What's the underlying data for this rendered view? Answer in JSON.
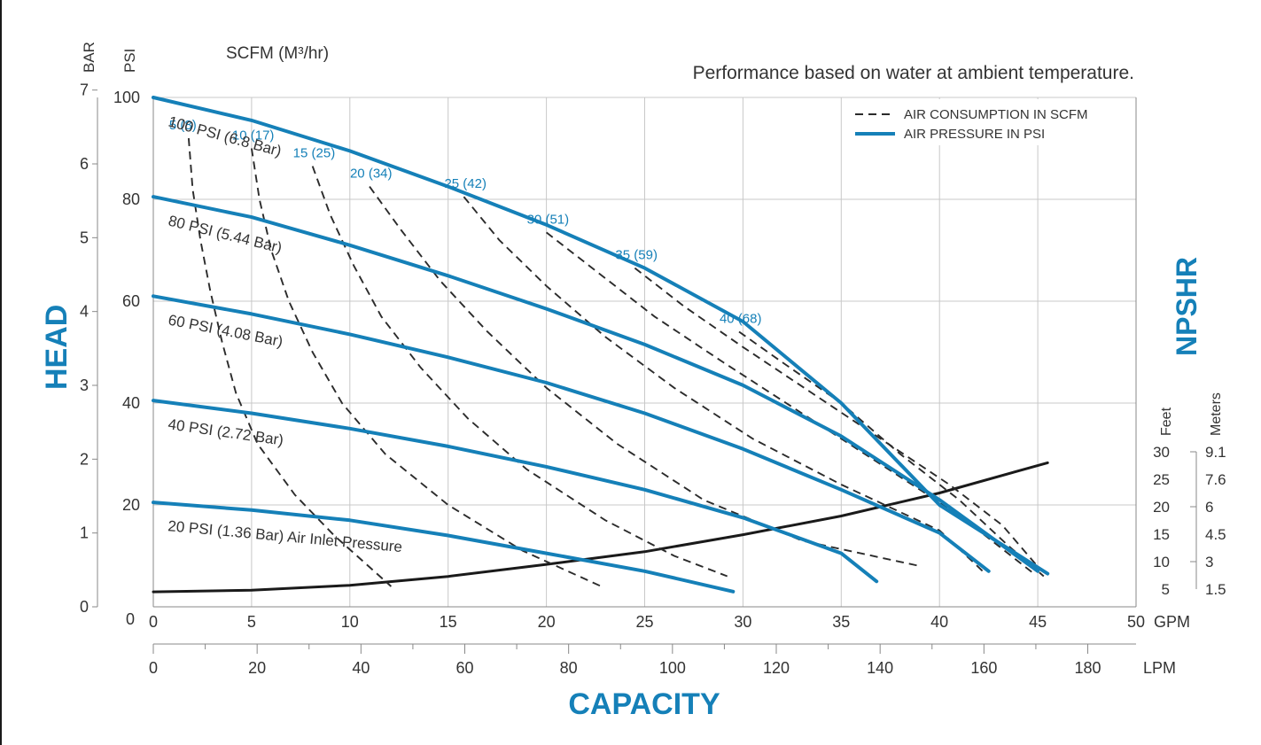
{
  "chart_data": {
    "type": "line",
    "title": "",
    "note": "Performance based on water at ambient temperature.",
    "xlabel": "CAPACITY",
    "ylabel": "HEAD",
    "right_label": "NPSHR",
    "grid": true,
    "legend_position": "top-right",
    "legend": [
      {
        "style": "dashed",
        "label": "AIR CONSUMPTION IN SCFM"
      },
      {
        "style": "solid",
        "label": "AIR PRESSURE IN PSI",
        "color": "#1580b8"
      }
    ],
    "x_axis_gpm": {
      "unit": "GPM",
      "range": [
        0,
        50
      ],
      "ticks": [
        "0",
        "5",
        "10",
        "15",
        "20",
        "25",
        "30",
        "35",
        "40",
        "45",
        "50"
      ]
    },
    "x_axis_lpm": {
      "unit": "LPM",
      "range": [
        0,
        189.3
      ],
      "ticks": [
        "0",
        "20",
        "40",
        "60",
        "80",
        "100",
        "120",
        "140",
        "160",
        "180"
      ]
    },
    "y_axis_psi": {
      "unit": "PSI",
      "range": [
        0,
        100
      ],
      "ticks": [
        "0",
        "20",
        "40",
        "60",
        "80",
        "100"
      ]
    },
    "y_axis_bar": {
      "unit": "BAR",
      "range": [
        0,
        6.9
      ],
      "ticks": [
        "0",
        "1",
        "2",
        "3",
        "4",
        "5",
        "6",
        "7"
      ]
    },
    "air_axis_label": "SCFM (M³/hr)",
    "npshr_axis": {
      "feet_label": "Feet",
      "meters_label": "Meters",
      "feet_ticks": [
        "30",
        "25",
        "20",
        "15",
        "10",
        "5"
      ],
      "meters_ticks": [
        "9.1",
        "7.6",
        "6",
        "4.5",
        "3",
        "1.5"
      ]
    },
    "pressure_series": [
      {
        "label": "100 PSI (6.8 Bar)",
        "points": [
          [
            0,
            100
          ],
          [
            5,
            95.5
          ],
          [
            10,
            89.5
          ],
          [
            15,
            82.5
          ],
          [
            20,
            75
          ],
          [
            25,
            66.5
          ],
          [
            30,
            56
          ],
          [
            35,
            40
          ],
          [
            40,
            20
          ],
          [
            45.5,
            6.5
          ]
        ]
      },
      {
        "label": "80 PSI (5.44 Bar)",
        "points": [
          [
            0,
            80.5
          ],
          [
            5,
            76.5
          ],
          [
            10,
            71
          ],
          [
            15,
            65
          ],
          [
            20,
            58.5
          ],
          [
            25,
            51.5
          ],
          [
            30,
            43.5
          ],
          [
            35,
            33.5
          ],
          [
            40,
            21
          ],
          [
            45,
            7
          ]
        ]
      },
      {
        "label": "60 PSI (4.08 Bar)",
        "points": [
          [
            0,
            61
          ],
          [
            5,
            57.5
          ],
          [
            10,
            53.5
          ],
          [
            15,
            49
          ],
          [
            20,
            44
          ],
          [
            25,
            38
          ],
          [
            30,
            31
          ],
          [
            35,
            23
          ],
          [
            40,
            14.5
          ],
          [
            42.5,
            7
          ]
        ]
      },
      {
        "label": "40 PSI (2.72 Bar)",
        "points": [
          [
            0,
            40.5
          ],
          [
            5,
            38
          ],
          [
            10,
            35
          ],
          [
            15,
            31.5
          ],
          [
            20,
            27.5
          ],
          [
            25,
            23
          ],
          [
            30,
            17.5
          ],
          [
            35,
            10.5
          ],
          [
            36.8,
            5
          ]
        ]
      },
      {
        "label": "20 PSI (1.36 Bar) Air Inlet Pressure",
        "points": [
          [
            0,
            20.5
          ],
          [
            5,
            19
          ],
          [
            10,
            17
          ],
          [
            15,
            14
          ],
          [
            20,
            10.5
          ],
          [
            25,
            7
          ],
          [
            29.5,
            3
          ]
        ]
      }
    ],
    "air_series": [
      {
        "label": "5 (8)",
        "points": [
          [
            1.8,
            92
          ],
          [
            2.0,
            82
          ],
          [
            2.4,
            72
          ],
          [
            2.9,
            62
          ],
          [
            3.5,
            52
          ],
          [
            4.2,
            42
          ],
          [
            5.3,
            32
          ],
          [
            7.2,
            22
          ],
          [
            9.2,
            14
          ],
          [
            12.1,
            4
          ]
        ]
      },
      {
        "label": "10 (17)",
        "points": [
          [
            5.0,
            90
          ],
          [
            5.4,
            80
          ],
          [
            6.0,
            70
          ],
          [
            6.9,
            60
          ],
          [
            8.1,
            50
          ],
          [
            9.6,
            40
          ],
          [
            11.8,
            30
          ],
          [
            15.0,
            20
          ],
          [
            18.8,
            11
          ],
          [
            22.8,
            4
          ]
        ]
      },
      {
        "label": "15 (25)",
        "points": [
          [
            8.1,
            86.5
          ],
          [
            9.0,
            77
          ],
          [
            10.2,
            67
          ],
          [
            11.6,
            57
          ],
          [
            13.6,
            47
          ],
          [
            16.0,
            37
          ],
          [
            19.0,
            27
          ],
          [
            23.0,
            17
          ],
          [
            26.5,
            10
          ],
          [
            29.2,
            6
          ]
        ]
      },
      {
        "label": "20 (34)",
        "points": [
          [
            11.0,
            82.5
          ],
          [
            12.6,
            74
          ],
          [
            14.6,
            64
          ],
          [
            17.0,
            54
          ],
          [
            20.0,
            43
          ],
          [
            23.6,
            32
          ],
          [
            28.0,
            21
          ],
          [
            33.0,
            13
          ],
          [
            39.0,
            8
          ]
        ]
      },
      {
        "label": "25 (42)",
        "points": [
          [
            15.8,
            80.5
          ],
          [
            17.6,
            72
          ],
          [
            20.0,
            63
          ],
          [
            23.0,
            53
          ],
          [
            26.5,
            43
          ],
          [
            30.5,
            33
          ],
          [
            35.0,
            24
          ],
          [
            40.0,
            15
          ],
          [
            42.2,
            7
          ]
        ]
      },
      {
        "label": "30 (51)",
        "points": [
          [
            20.0,
            73.5
          ],
          [
            22.5,
            66
          ],
          [
            25.5,
            57
          ],
          [
            29.0,
            48
          ],
          [
            33.0,
            38
          ],
          [
            37.0,
            28
          ],
          [
            41.0,
            18
          ],
          [
            44.8,
            6.5
          ]
        ]
      },
      {
        "label": "35 (59)",
        "points": [
          [
            24.5,
            66.5
          ],
          [
            27.0,
            59
          ],
          [
            30.0,
            51
          ],
          [
            33.5,
            42
          ],
          [
            37.0,
            33
          ],
          [
            40.5,
            24
          ],
          [
            43.2,
            16
          ],
          [
            45.2,
            7
          ]
        ]
      },
      {
        "label": "40 (68)",
        "points": [
          [
            29.8,
            54
          ],
          [
            32.0,
            48
          ],
          [
            35.0,
            40
          ],
          [
            38.0,
            30
          ],
          [
            41.0,
            21
          ],
          [
            43.5,
            12
          ],
          [
            45.3,
            6
          ]
        ]
      }
    ],
    "npshr_curve": {
      "points": [
        [
          0,
          4.5
        ],
        [
          5,
          4.8
        ],
        [
          10,
          5.7
        ],
        [
          15,
          7.3
        ],
        [
          20,
          9.5
        ],
        [
          25,
          11.8
        ],
        [
          30,
          14.9
        ],
        [
          35,
          18.3
        ],
        [
          40,
          22.5
        ],
        [
          45.5,
          28
        ]
      ]
    }
  }
}
